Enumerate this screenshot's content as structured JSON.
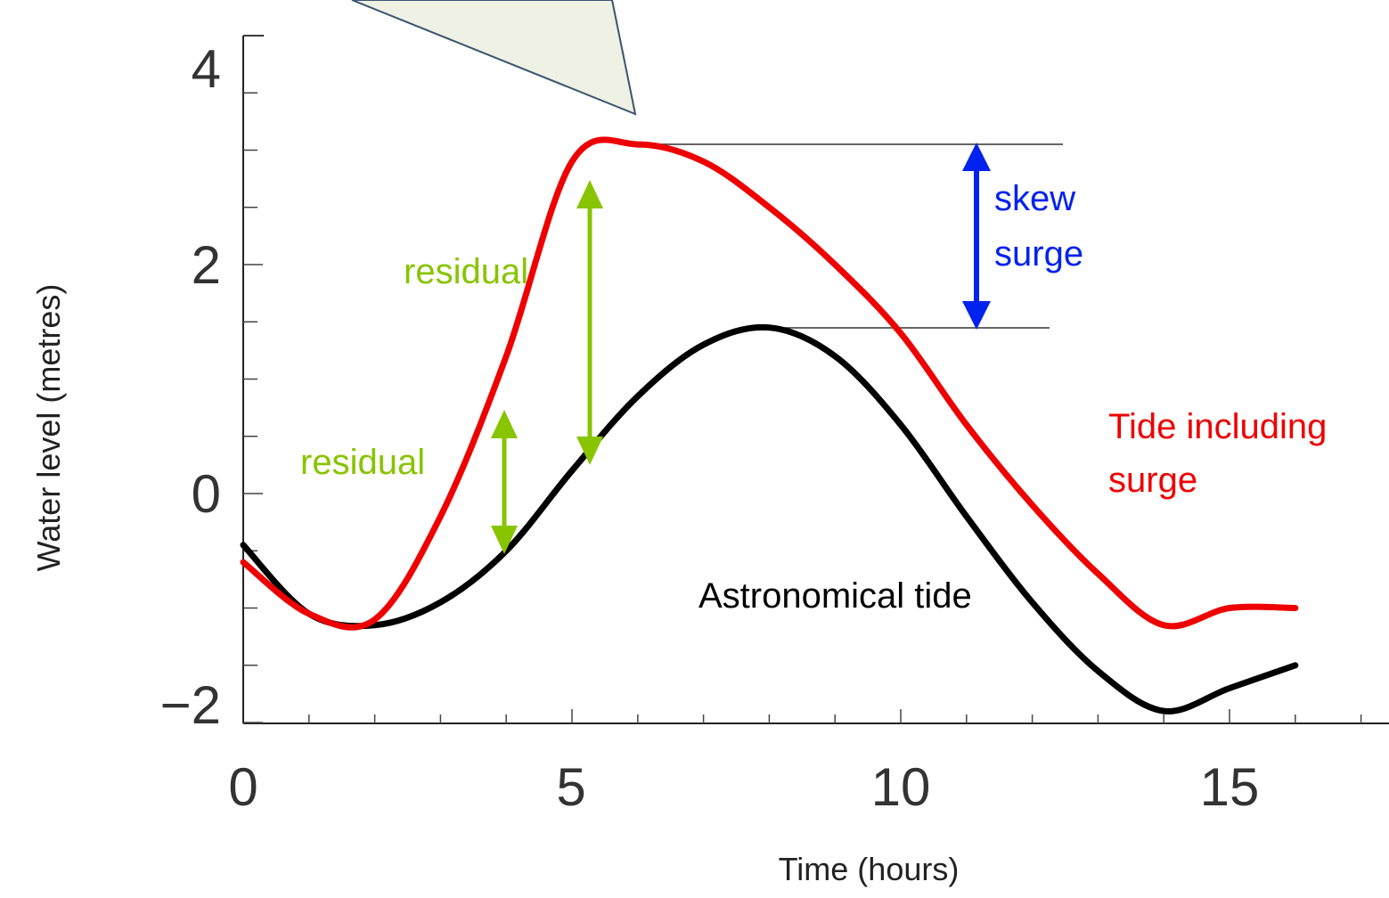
{
  "chart_data": {
    "type": "line",
    "title": "",
    "xlabel": "Time (hours)",
    "ylabel": "Water level (metres)",
    "xlim": [
      0,
      17.5
    ],
    "ylim": [
      -2,
      4
    ],
    "x_ticks": [
      "0",
      "5",
      "10",
      "15"
    ],
    "y_ticks": [
      "4",
      "2",
      "0",
      "−2"
    ],
    "grid": false,
    "series": [
      {
        "name": "Astronomical tide",
        "color": "#000000",
        "x": [
          0,
          1,
          2,
          3,
          4,
          5,
          6,
          7,
          8,
          9,
          10,
          11,
          12,
          13,
          14,
          15,
          16
        ],
        "y": [
          -0.45,
          -1.05,
          -1.15,
          -0.95,
          -0.5,
          0.2,
          0.85,
          1.3,
          1.45,
          1.2,
          0.6,
          -0.2,
          -0.95,
          -1.55,
          -1.9,
          -1.7,
          -1.5
        ]
      },
      {
        "name": "Tide including surge",
        "color": "#ee0000",
        "x": [
          0,
          1,
          2,
          3,
          4,
          5,
          6,
          7,
          8,
          9,
          10,
          11,
          12,
          13,
          14,
          15,
          16
        ],
        "y": [
          -0.6,
          -1.05,
          -1.1,
          -0.2,
          1.2,
          2.9,
          3.05,
          2.9,
          2.5,
          2.0,
          1.4,
          0.6,
          -0.1,
          -0.7,
          -1.15,
          -1.0,
          -1.0
        ]
      }
    ],
    "annotations": [
      {
        "text_lines": [
          "skew",
          "surge"
        ],
        "color": "#0000ff"
      },
      {
        "text_lines": [
          "residual"
        ],
        "color": "#88c400"
      },
      {
        "text_lines": [
          "residual"
        ],
        "color": "#88c400"
      },
      {
        "text_lines": [
          "Tide including",
          "surge"
        ],
        "color": "#ee0000"
      },
      {
        "text_lines": [
          "Astronomical tide"
        ],
        "color": "#000000"
      }
    ],
    "callout_color": "#eef1e3"
  }
}
